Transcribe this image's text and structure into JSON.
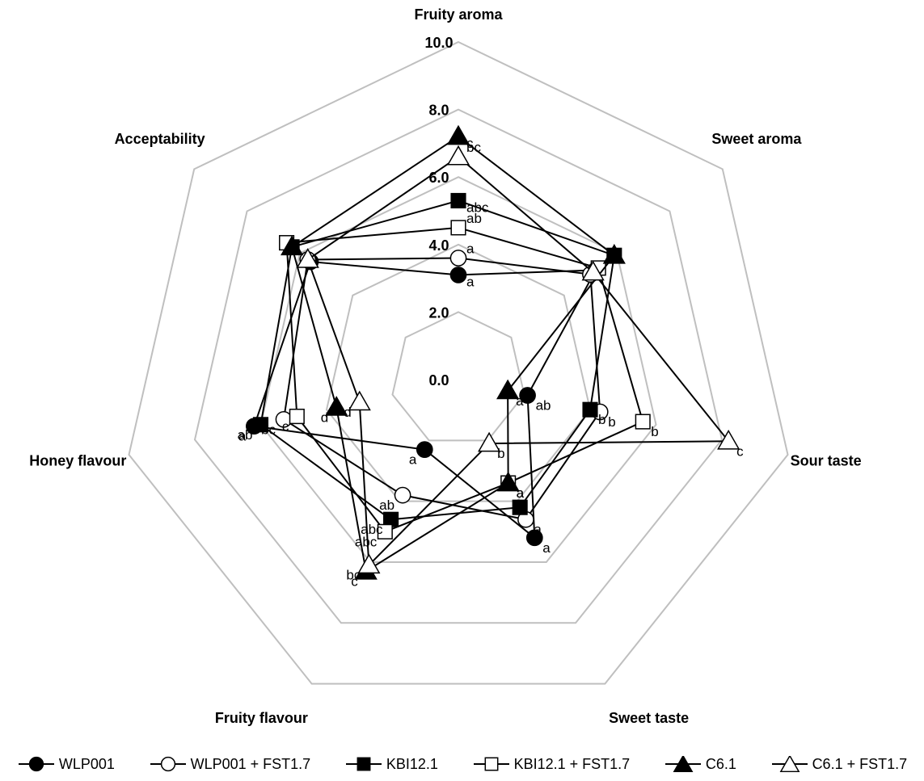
{
  "chart_data": {
    "type": "radar",
    "axes": [
      "Fruity aroma",
      "Sweet aroma",
      "Sour taste",
      "Sweet taste",
      "Fruity flavour",
      "Honey flavour",
      "Acceptability"
    ],
    "rlim": [
      0,
      10
    ],
    "ticks": [
      0,
      2,
      4,
      6,
      8,
      10
    ],
    "tick_labels": [
      "0.0",
      "2.0",
      "4.0",
      "6.0",
      "8.0",
      "10.0"
    ],
    "legend_position": "bottom",
    "series": [
      {
        "name": "WLP001",
        "marker": "circle",
        "fill": "#000000",
        "values": [
          3.1,
          5.2,
          2.1,
          5.2,
          2.3,
          6.2,
          5.6
        ],
        "sig": [
          "a",
          "",
          "ab",
          "a",
          "a",
          "a",
          ""
        ]
      },
      {
        "name": "WLP001 + FST1.7",
        "marker": "circle",
        "fill": "#ffffff",
        "values": [
          3.6,
          5.0,
          4.3,
          4.6,
          3.8,
          5.3,
          5.7
        ],
        "sig": [
          "a",
          "",
          "b",
          "a",
          "ab",
          "bc",
          ""
        ]
      },
      {
        "name": "KBI12.1",
        "marker": "square",
        "fill": "#000000",
        "values": [
          5.3,
          5.9,
          4.0,
          4.2,
          4.6,
          6.0,
          6.3
        ],
        "sig": [
          "abc",
          "",
          "b",
          "",
          "abc",
          "ab",
          ""
        ]
      },
      {
        "name": "KBI12.1 + FST1.7",
        "marker": "square",
        "fill": "#ffffff",
        "values": [
          4.5,
          5.3,
          5.6,
          3.4,
          5.0,
          4.9,
          6.5
        ],
        "sig": [
          "ab",
          "",
          "b",
          "a",
          "abc",
          "c",
          ""
        ]
      },
      {
        "name": "C6.1",
        "marker": "triangle",
        "fill": "#000000",
        "values": [
          7.2,
          5.9,
          1.5,
          3.4,
          6.3,
          3.7,
          6.3
        ],
        "sig": [
          "c",
          "",
          "a",
          "a",
          "c",
          "d",
          ""
        ]
      },
      {
        "name": "C6.1 + FST1.7",
        "marker": "triangle",
        "fill": "#ffffff",
        "values": [
          6.6,
          5.1,
          8.2,
          2.1,
          6.1,
          3.0,
          5.7
        ],
        "sig": [
          "bc",
          "",
          "c",
          "b",
          "bc",
          "d",
          ""
        ]
      }
    ]
  }
}
